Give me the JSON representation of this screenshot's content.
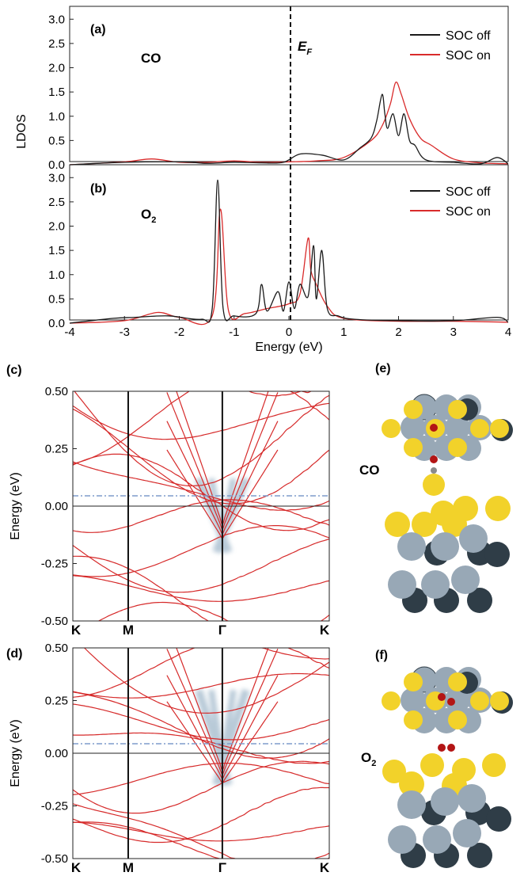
{
  "figure": {
    "panels": {
      "a": {
        "label": "(a)",
        "molecule": "CO",
        "fermi_label": "E",
        "fermi_sub": "F"
      },
      "b": {
        "label": "(b)",
        "molecule": "O",
        "molecule_sub": "2"
      },
      "c": {
        "label": "(c)"
      },
      "d": {
        "label": "(d)"
      },
      "e": {
        "label": "(e)",
        "molecule": "CO"
      },
      "f": {
        "label": "(f)",
        "molecule": "O",
        "molecule_sub": "2"
      }
    },
    "colors": {
      "soc_off": "#1a1a1a",
      "soc_on": "#d92b2b",
      "band": "#d62a2a",
      "dirac_glow": "#7f9fb8",
      "dashdot": "#7f9ccb",
      "gold_atom": "#f2d22a",
      "gray_atom": "#98a8b6",
      "dark_atom": "#2f3d47",
      "oxygen": "#b31515",
      "carbon": "#8a8a8a"
    }
  },
  "chart_data": [
    {
      "type": "line",
      "panel": "(a)",
      "ylabel": "LDOS",
      "xlim": [
        -4,
        4
      ],
      "ylim": [
        0,
        3.2
      ],
      "yticks": [
        "0.0",
        "0.5",
        "1.0",
        "1.5",
        "2.0",
        "2.5",
        "3.0"
      ],
      "legend": "top-right",
      "series": [
        {
          "name": "SOC off",
          "x": [
            -4,
            -3,
            -2,
            -1.5,
            -1,
            -0.5,
            -0.1,
            0.2,
            0.6,
            1.0,
            1.3,
            1.5,
            1.6,
            1.7,
            1.75,
            1.8,
            1.9,
            2.0,
            2.1,
            2.2,
            2.3,
            2.5,
            3.0,
            3.5,
            3.8,
            4.0
          ],
          "y": [
            0,
            0.05,
            0.06,
            0.03,
            0.05,
            0.04,
            0.05,
            0.22,
            0.2,
            0.1,
            0.35,
            0.55,
            0.9,
            1.45,
            1.05,
            0.75,
            1.05,
            0.6,
            1.05,
            0.5,
            0.4,
            0.1,
            0.05,
            0.02,
            0.15,
            0.02
          ]
        },
        {
          "name": "SOC on",
          "x": [
            -4,
            -3,
            -2.5,
            -2,
            -1.5,
            -1,
            -0.5,
            0,
            0.5,
            1.0,
            1.5,
            1.7,
            1.85,
            1.95,
            2.05,
            2.2,
            2.4,
            2.6,
            3.0,
            3.5,
            4.0
          ],
          "y": [
            0,
            0.06,
            0.12,
            0.05,
            0.05,
            0.08,
            0.05,
            0.06,
            0.08,
            0.15,
            0.5,
            0.8,
            1.25,
            1.7,
            1.45,
            0.95,
            0.55,
            0.4,
            0.12,
            0.04,
            0.02
          ]
        }
      ]
    },
    {
      "type": "line",
      "panel": "(b)",
      "xlabel": "Energy (eV)",
      "xticks": [
        "-4",
        "-3",
        "-2",
        "-1",
        "0",
        "1",
        "2",
        "3",
        "4"
      ],
      "xlim": [
        -4,
        4
      ],
      "ylim": [
        0,
        3.2
      ],
      "yticks": [
        "0.0",
        "0.5",
        "1.0",
        "1.5",
        "2.0",
        "2.5",
        "3.0"
      ],
      "legend": "top-right",
      "series": [
        {
          "name": "SOC off",
          "x": [
            -4,
            -3.2,
            -2.8,
            -2.2,
            -1.6,
            -1.4,
            -1.3,
            -1.2,
            -1.0,
            -0.6,
            -0.5,
            -0.4,
            -0.2,
            -0.1,
            0,
            0.1,
            0.2,
            0.35,
            0.45,
            0.5,
            0.6,
            0.7,
            0.9,
            1.2,
            2.0,
            3.0,
            3.8,
            4.0
          ],
          "y": [
            0,
            0.1,
            0.12,
            0.15,
            0.08,
            0.3,
            2.95,
            0.3,
            0.15,
            0.2,
            0.8,
            0.25,
            0.65,
            0.25,
            0.85,
            0.3,
            0.8,
            0.55,
            1.6,
            0.5,
            1.5,
            0.3,
            0.15,
            0.08,
            0.05,
            0.05,
            0.12,
            0.02
          ]
        },
        {
          "name": "SOC on",
          "x": [
            -4,
            -3.0,
            -2.4,
            -2.0,
            -1.4,
            -1.25,
            -1.1,
            -0.8,
            -0.4,
            0,
            0.2,
            0.35,
            0.4,
            0.5,
            0.7,
            1.0,
            2.0,
            3.0,
            4.0
          ],
          "y": [
            0,
            0.05,
            0.22,
            0.12,
            0.15,
            2.35,
            0.25,
            0.2,
            0.3,
            0.4,
            0.6,
            1.75,
            1.1,
            0.8,
            0.35,
            0.1,
            0.04,
            0.04,
            0.02
          ]
        }
      ]
    },
    {
      "type": "line",
      "panel": "(c)",
      "ylabel": "Energy (eV)",
      "ylim": [
        -0.5,
        0.5
      ],
      "yticks": [
        "-0.50",
        "-0.25",
        "0.00",
        "0.25",
        "0.50"
      ],
      "xticks": [
        "K",
        "M",
        "Γ",
        "K"
      ],
      "series": []
    },
    {
      "type": "line",
      "panel": "(d)",
      "ylabel": "Energy (eV)",
      "ylim": [
        -0.5,
        0.5
      ],
      "yticks": [
        "-0.50",
        "-0.25",
        "0.00",
        "0.25",
        "0.50"
      ],
      "xticks": [
        "K",
        "M",
        "Γ",
        "K"
      ],
      "series": []
    }
  ]
}
